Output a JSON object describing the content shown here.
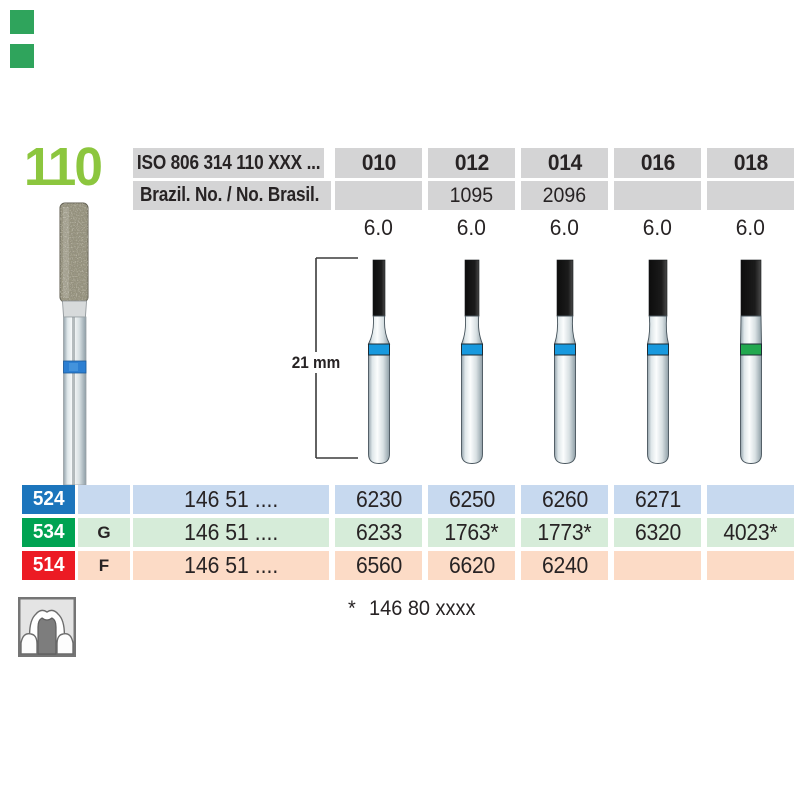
{
  "page": {
    "title_number": "110",
    "accent_green": "#8cc63e",
    "corner_marks": [
      {
        "color": "#2fa45c"
      },
      {
        "color": "#2fa45c"
      }
    ]
  },
  "header_table": {
    "iso_row_label": "ISO 806 314 110 XXX ...",
    "brazil_row_label": "Brazil. No. / No. Brasil.",
    "cell_bg": "#d4d4d5",
    "columns": [
      {
        "size": "010",
        "brazil_no": "",
        "head_length_mm": "6.0",
        "ring_color": "#1899de",
        "tip_width": 12
      },
      {
        "size": "012",
        "brazil_no": "1095",
        "head_length_mm": "6.0",
        "ring_color": "#1899de",
        "tip_width": 14
      },
      {
        "size": "014",
        "brazil_no": "2096",
        "head_length_mm": "6.0",
        "ring_color": "#1899de",
        "tip_width": 16
      },
      {
        "size": "016",
        "brazil_no": "",
        "head_length_mm": "6.0",
        "ring_color": "#1899de",
        "tip_width": 18
      },
      {
        "size": "018",
        "brazil_no": "",
        "head_length_mm": "6.0",
        "ring_color": "#22a84f",
        "tip_width": 20
      }
    ]
  },
  "figure": {
    "dimension_label": "21 mm"
  },
  "order_table": {
    "stem_number": "146 51 ....",
    "rows": [
      {
        "code": "524",
        "badge_color": "#1c75bc",
        "row_color": "#c7d9ef",
        "grit_letter": "",
        "order_numbers": [
          "6230",
          "6250",
          "6260",
          "6271",
          ""
        ]
      },
      {
        "code": "534",
        "badge_color": "#00a352",
        "row_color": "#d6ecd9",
        "grit_letter": "G",
        "order_numbers": [
          "6233",
          "1763*",
          "1773*",
          "6320",
          "4023*"
        ]
      },
      {
        "code": "514",
        "badge_color": "#ec1b24",
        "row_color": "#fcdbc6",
        "grit_letter": "F",
        "order_numbers": [
          "6560",
          "6620",
          "6240",
          "",
          ""
        ]
      }
    ]
  },
  "footnote": {
    "marker": "*",
    "text": "146 80 xxxx"
  }
}
